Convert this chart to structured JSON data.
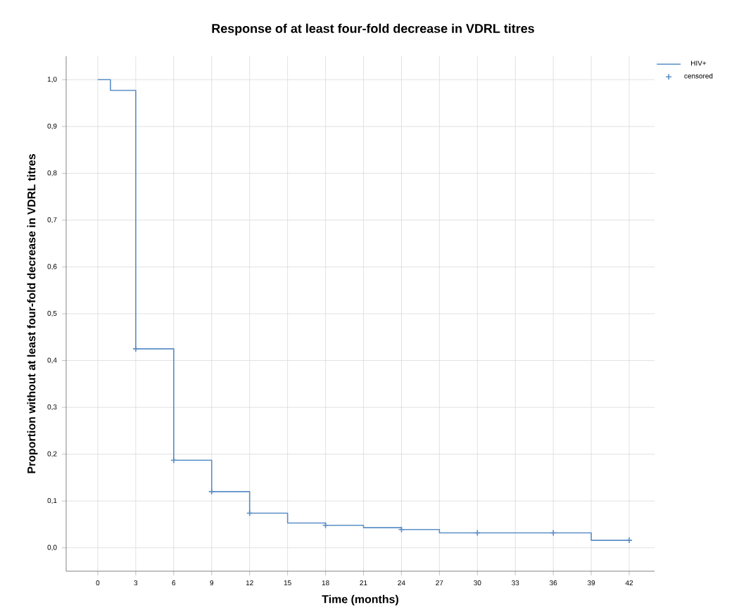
{
  "chart_data": {
    "type": "step",
    "title": "Response of at least four-fold decrease in VDRL titres",
    "xlabel": "Time (months)",
    "ylabel": "Proportion without at least four-fold decrease in VDRL titres",
    "series": [
      {
        "name": "HIV+",
        "color": "#5b8fc7",
        "marker": "none",
        "x": [
          0,
          1,
          3,
          6,
          9,
          12,
          15,
          18,
          21,
          24,
          27,
          39,
          42
        ],
        "values": [
          1.0,
          0.977,
          0.425,
          0.187,
          0.12,
          0.074,
          0.053,
          0.048,
          0.043,
          0.039,
          0.032,
          0.016,
          0.016
        ]
      },
      {
        "name": "censored",
        "type": "scatter",
        "color": "#5b8fc7",
        "marker": "cross",
        "x": [
          3,
          6,
          9,
          12,
          18,
          24,
          30,
          36,
          42
        ],
        "values": [
          0.425,
          0.187,
          0.12,
          0.074,
          0.048,
          0.039,
          0.032,
          0.032,
          0.016
        ]
      }
    ],
    "xlim": [
      -2.5,
      44
    ],
    "ylim": [
      -0.05,
      1.05
    ],
    "xticks": [
      0,
      3,
      6,
      9,
      12,
      15,
      18,
      21,
      24,
      27,
      30,
      33,
      36,
      39,
      42
    ],
    "yticks": [
      {
        "value": 0,
        "label": "0,0"
      },
      {
        "value": 0.1,
        "label": "0,1"
      },
      {
        "value": 0.2,
        "label": "0,2"
      },
      {
        "value": 0.3,
        "label": "0,3"
      },
      {
        "value": 0.4,
        "label": "0,4"
      },
      {
        "value": 0.5,
        "label": "0,5"
      },
      {
        "value": 0.6,
        "label": "0,6"
      },
      {
        "value": 0.7,
        "label": "0,7"
      },
      {
        "value": 0.8,
        "label": "0,8"
      },
      {
        "value": 0.9,
        "label": "0,9"
      },
      {
        "value": 1.0,
        "label": "1,0"
      }
    ],
    "grid": true,
    "legend": "top right"
  }
}
